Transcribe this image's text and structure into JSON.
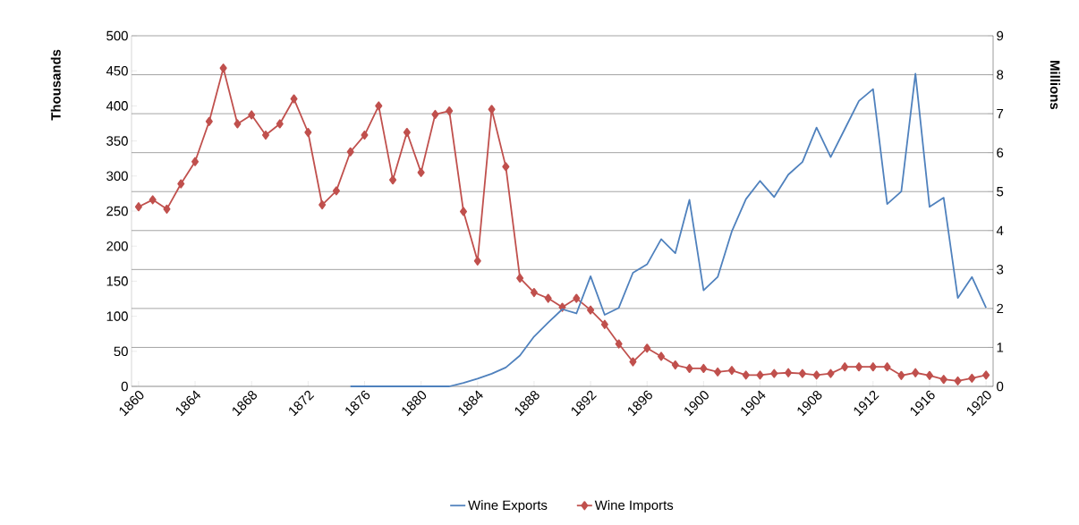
{
  "chart_data": {
    "type": "line",
    "ylabel": "Thousands",
    "y2label": "Millions",
    "x": [
      1860,
      1861,
      1862,
      1863,
      1864,
      1865,
      1866,
      1867,
      1868,
      1869,
      1870,
      1871,
      1872,
      1873,
      1874,
      1875,
      1876,
      1877,
      1878,
      1879,
      1880,
      1881,
      1882,
      1883,
      1884,
      1885,
      1886,
      1887,
      1888,
      1889,
      1890,
      1891,
      1892,
      1893,
      1894,
      1895,
      1896,
      1897,
      1898,
      1899,
      1900,
      1901,
      1902,
      1903,
      1904,
      1905,
      1906,
      1907,
      1908,
      1909,
      1910,
      1911,
      1912,
      1913,
      1914,
      1915,
      1916,
      1917,
      1918,
      1919,
      1920
    ],
    "series": [
      {
        "name": "Wine Exports",
        "color": "#4f81bd",
        "marker": "none",
        "values": [
          null,
          null,
          null,
          null,
          null,
          null,
          null,
          null,
          null,
          null,
          null,
          null,
          null,
          null,
          null,
          0,
          0,
          0,
          0,
          0,
          0,
          0,
          0,
          5,
          11,
          18,
          27,
          44,
          71,
          91,
          110,
          104,
          157,
          102,
          112,
          162,
          174,
          210,
          190,
          266,
          137,
          156,
          221,
          267,
          293,
          270,
          302,
          320,
          369,
          327,
          367,
          407,
          424,
          260,
          278,
          446,
          256,
          269,
          126,
          156,
          112
        ]
      },
      {
        "name": "Wine Imports",
        "color": "#c0504d",
        "marker": "diamond",
        "axis": "y2",
        "values": [
          4.61,
          4.79,
          4.55,
          5.2,
          5.77,
          6.8,
          8.17,
          6.74,
          6.97,
          6.45,
          6.74,
          7.38,
          6.52,
          4.66,
          5.02,
          6.02,
          6.45,
          7.2,
          5.3,
          6.52,
          5.49,
          6.98,
          7.07,
          4.49,
          3.22,
          7.11,
          5.64,
          2.78,
          2.41,
          2.26,
          2.03,
          2.26,
          1.96,
          1.59,
          1.09,
          0.63,
          0.98,
          0.77,
          0.55,
          0.46,
          0.46,
          0.37,
          0.41,
          0.29,
          0.29,
          0.33,
          0.35,
          0.33,
          0.29,
          0.33,
          0.5,
          0.5,
          0.5,
          0.5,
          0.28,
          0.35,
          0.28,
          0.18,
          0.14,
          0.21,
          0.29
        ]
      }
    ],
    "xlim": [
      1859.5,
      1920.5
    ],
    "xticks": [
      1860,
      1864,
      1868,
      1872,
      1876,
      1880,
      1884,
      1888,
      1892,
      1896,
      1900,
      1904,
      1908,
      1912,
      1916,
      1920
    ],
    "ylim": [
      0,
      500
    ],
    "yticks": [
      0,
      50,
      100,
      150,
      200,
      250,
      300,
      350,
      400,
      450,
      500
    ],
    "y2lim": [
      0,
      9
    ],
    "y2ticks": [
      0,
      1,
      2,
      3,
      4,
      5,
      6,
      7,
      8,
      9
    ],
    "grid": "y",
    "legend": "bottom",
    "line_style": "solid"
  }
}
